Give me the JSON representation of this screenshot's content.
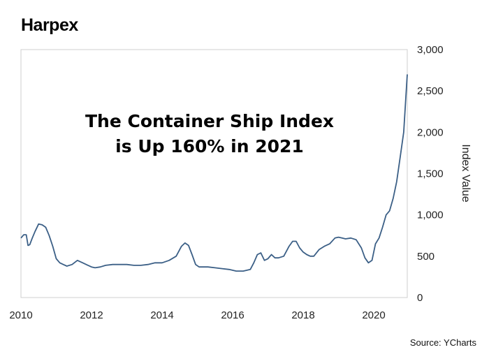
{
  "header": {
    "title": "Harpex"
  },
  "annotation": {
    "line1": "The Container Ship Index",
    "line2": "is Up 160% in 2021"
  },
  "source": "Source: YCharts",
  "colors": {
    "line": "#3b5f86",
    "frame": "#cfcfcf",
    "grid": "#cfcfcf"
  },
  "chart_data": {
    "type": "line",
    "title": "Harpex",
    "xlabel": "",
    "ylabel": "Index Value",
    "xlim": [
      2010,
      2020.95
    ],
    "ylim": [
      0,
      3000
    ],
    "x_ticks": [
      2010,
      2012,
      2014,
      2016,
      2018,
      2020
    ],
    "x_tick_labels": [
      "2010",
      "2012",
      "2014",
      "2016",
      "2018",
      "2020"
    ],
    "y_ticks": [
      0,
      500,
      1000,
      1500,
      2000,
      2500,
      3000
    ],
    "y_tick_labels": [
      "0",
      "500",
      "1,000",
      "1,500",
      "2,000",
      "2,500",
      "3,000"
    ],
    "grid": false,
    "legend": "none",
    "y_axis_position": "right",
    "series": [
      {
        "x": [
          2010.0,
          2010.08,
          2010.15,
          2010.2,
          2010.25,
          2010.32,
          2010.4,
          2010.5,
          2010.6,
          2010.7,
          2010.8,
          2010.9,
          2011.0,
          2011.1,
          2011.2,
          2011.3,
          2011.45,
          2011.6,
          2011.75,
          2011.9,
          2012.0,
          2012.1,
          2012.25,
          2012.4,
          2012.6,
          2012.8,
          2013.0,
          2013.2,
          2013.4,
          2013.6,
          2013.8,
          2014.0,
          2014.2,
          2014.4,
          2014.55,
          2014.65,
          2014.75,
          2014.85,
          2014.95,
          2015.05,
          2015.15,
          2015.3,
          2015.5,
          2015.7,
          2015.9,
          2016.1,
          2016.3,
          2016.5,
          2016.6,
          2016.7,
          2016.8,
          2016.9,
          2017.0,
          2017.1,
          2017.2,
          2017.3,
          2017.45,
          2017.6,
          2017.7,
          2017.8,
          2017.9,
          2018.0,
          2018.1,
          2018.2,
          2018.3,
          2018.45,
          2018.6,
          2018.75,
          2018.9,
          2019.0,
          2019.1,
          2019.2,
          2019.35,
          2019.5,
          2019.65,
          2019.75,
          2019.85,
          2019.95,
          2020.05,
          2020.15,
          2020.25,
          2020.35,
          2020.45,
          2020.55,
          2020.65,
          2020.75,
          2020.85,
          2020.95
        ],
        "y": [
          720,
          760,
          760,
          630,
          640,
          720,
          800,
          890,
          880,
          850,
          750,
          620,
          470,
          420,
          400,
          380,
          400,
          450,
          420,
          390,
          370,
          360,
          370,
          390,
          400,
          400,
          400,
          390,
          390,
          400,
          420,
          420,
          450,
          500,
          620,
          660,
          630,
          520,
          400,
          370,
          370,
          370,
          360,
          350,
          340,
          320,
          320,
          340,
          420,
          520,
          540,
          450,
          470,
          520,
          480,
          480,
          500,
          620,
          680,
          680,
          600,
          550,
          520,
          500,
          500,
          580,
          620,
          650,
          720,
          730,
          720,
          710,
          720,
          700,
          600,
          480,
          420,
          450,
          650,
          720,
          850,
          1000,
          1050,
          1200,
          1400,
          1700,
          2000,
          2700
        ]
      }
    ]
  }
}
